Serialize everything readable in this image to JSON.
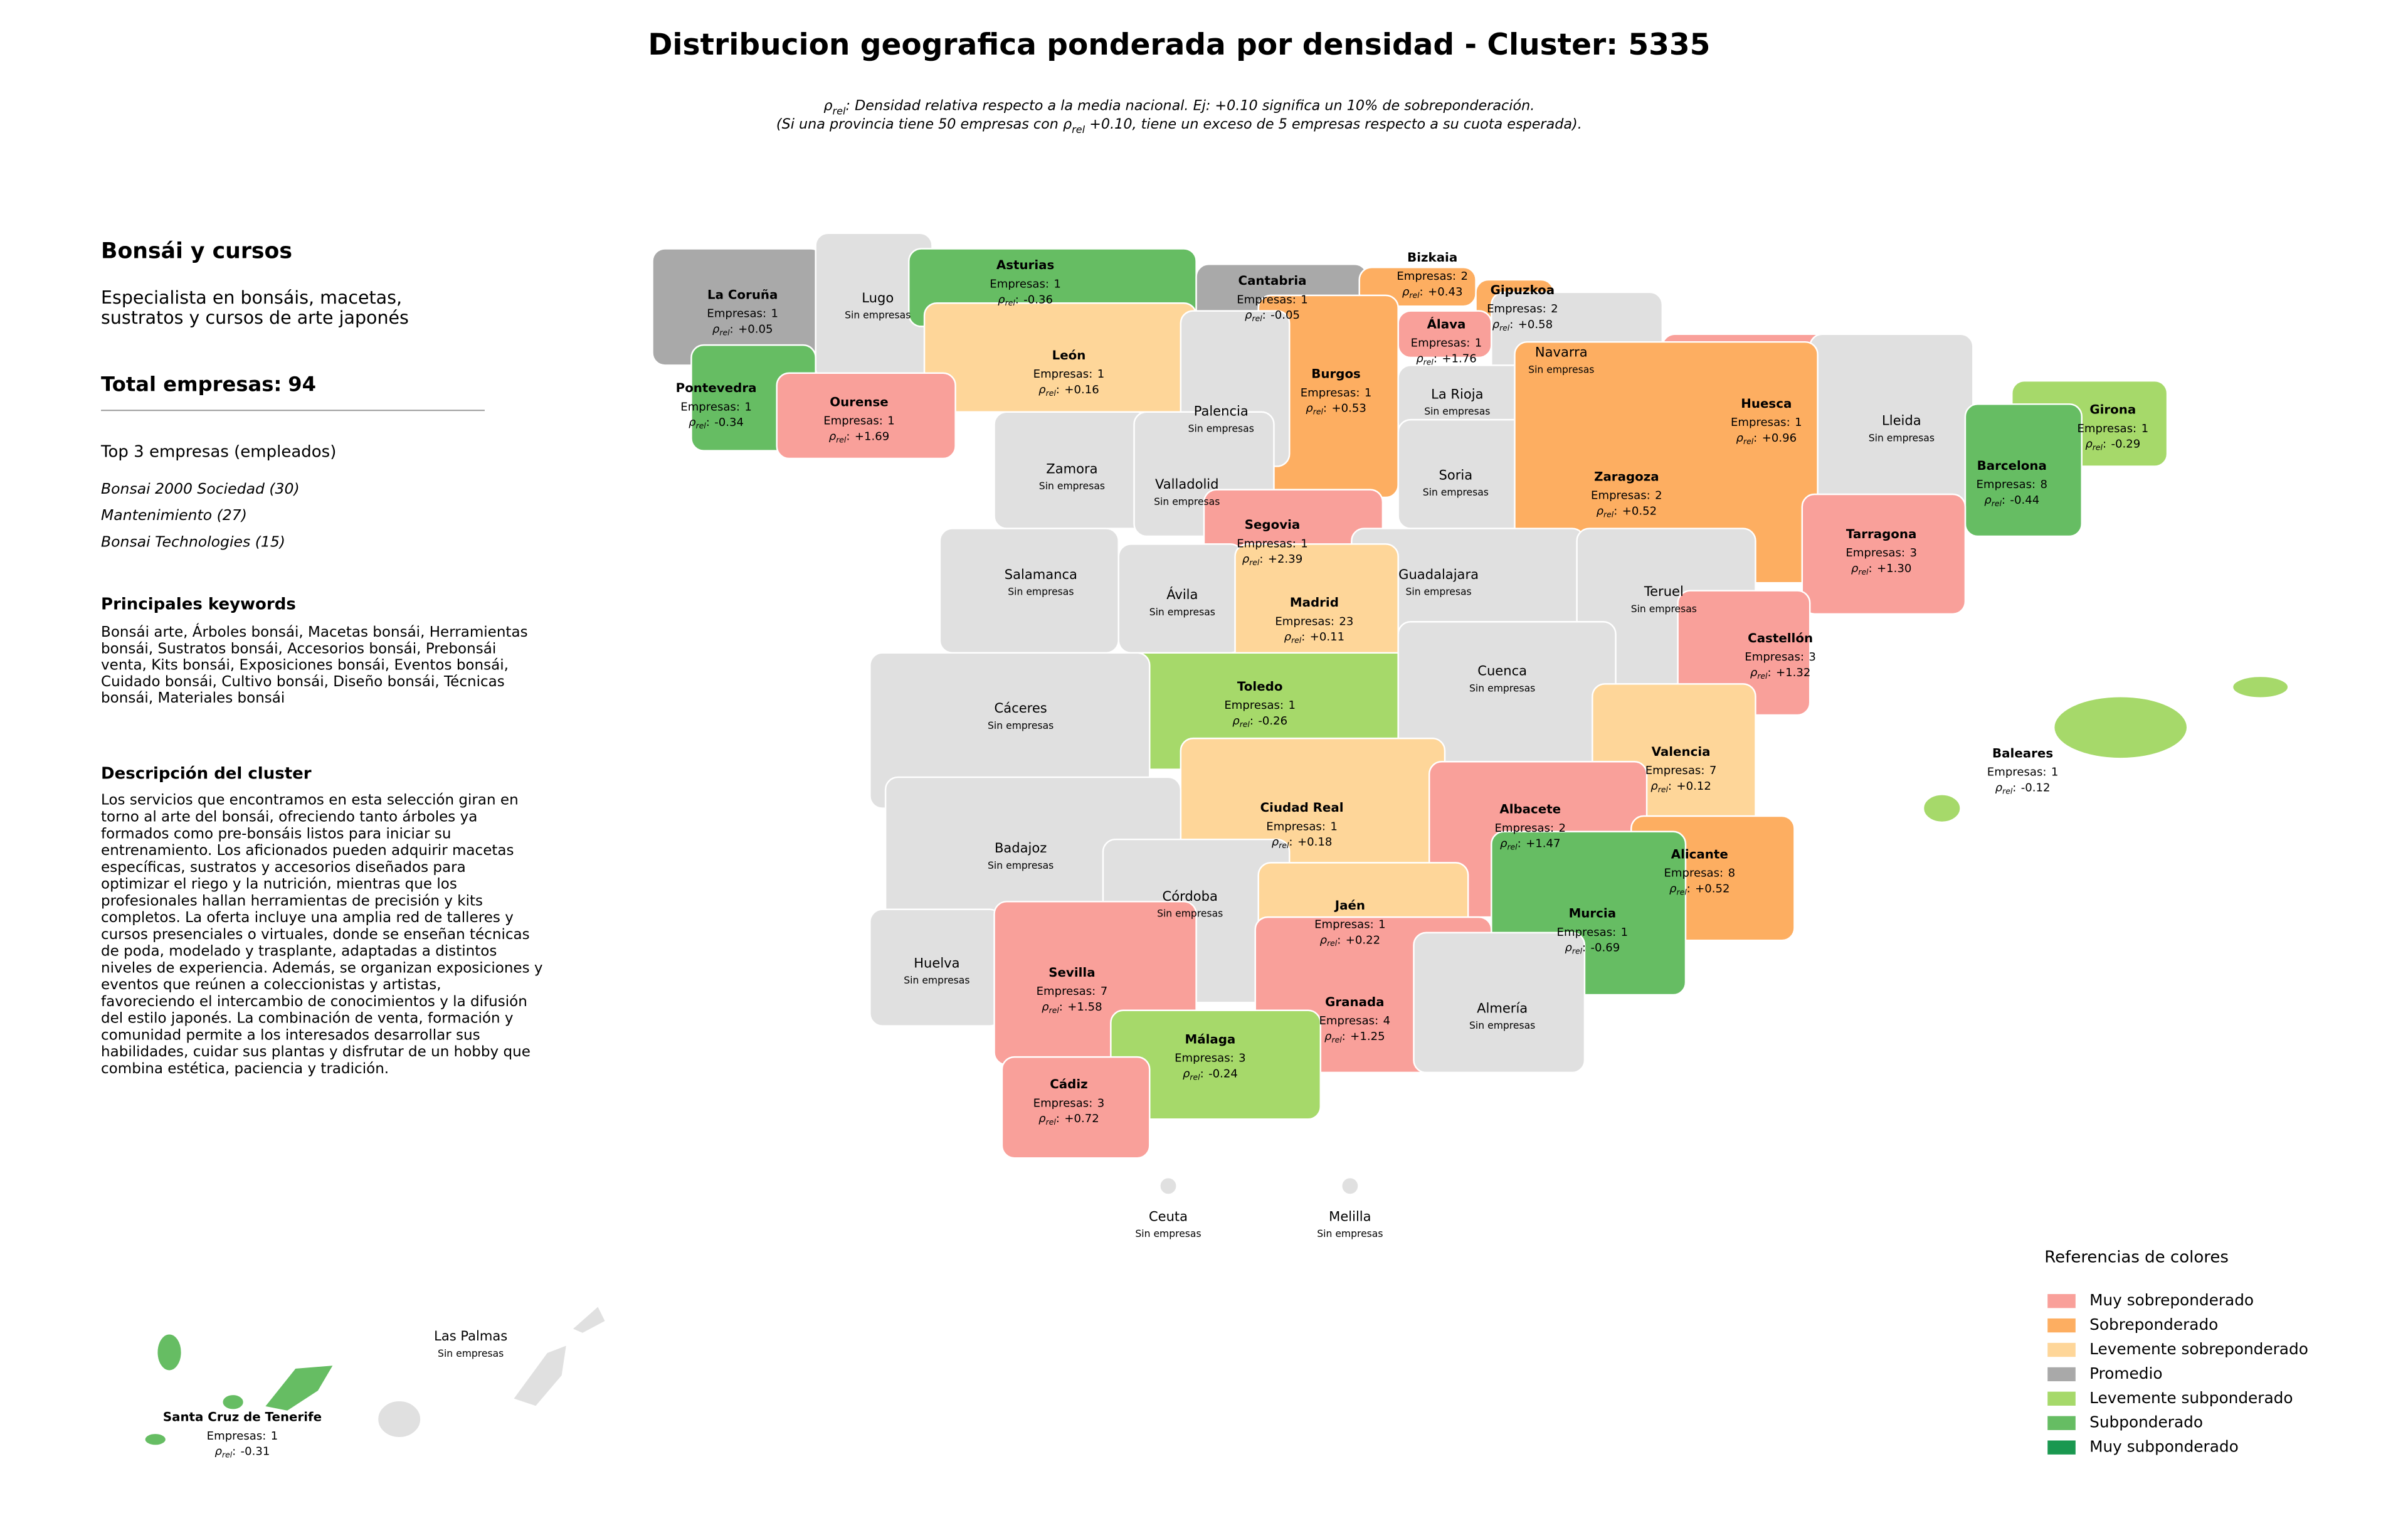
{
  "header": {
    "title": "Distribucion geografica ponderada por densidad - Cluster: 5335",
    "subtitle": [
      [
        {
          "t": "ρ"
        },
        {
          "t": "rel",
          "sub": true
        },
        {
          "t": ": Densidad relativa respecto a la media nacional. Ej: +0.10 significa un 10% de sobreponderación."
        }
      ],
      [
        {
          "t": "(Si una provincia tiene 50 empresas con "
        },
        {
          "t": "ρ"
        },
        {
          "t": "rel",
          "sub": true
        },
        {
          "t": " +0.10, tiene un exceso de 5 empresas respecto a su cuota esperada)."
        }
      ]
    ]
  },
  "panel": {
    "title": "Bonsái y cursos",
    "subtitle": [
      "Especialista en bonsáis, macetas,",
      "sustratos y cursos de arte japonés"
    ],
    "total_label": "Total empresas:",
    "total": 94,
    "top_title": "Top 3 empresas (empleados)",
    "top": [
      "Bonsai 2000 Sociedad (30)",
      "Mantenimiento (27)",
      "Bonsai Technologies (15)"
    ],
    "keywords_title": "Principales keywords",
    "keywords": [
      "Bonsái arte, Árboles bonsái, Macetas bonsái, Herramientas",
      "bonsái, Sustratos bonsái, Accesorios bonsái, Prebonsái",
      "venta, Kits bonsái, Exposiciones bonsái, Eventos bonsái,",
      "Cuidado bonsái, Cultivo bonsái, Diseño bonsái, Técnicas",
      "bonsái, Materiales bonsái"
    ],
    "description_title": "Descripción del cluster",
    "description": [
      "Los servicios que encontramos en esta selección giran en",
      "torno al arte del bonsái, ofreciendo tanto árboles ya",
      "formados como pre-bonsáis listos para iniciar su",
      "entrenamiento. Los aficionados pueden adquirir macetas",
      "específicas, sustratos y accesorios diseñados para",
      "optimizar el riego y la nutrición, mientras que los",
      "profesionales hallan herramientas de precisión y kits",
      "completos. La oferta incluye una amplia red de talleres y",
      "cursos presenciales o virtuales, donde se enseñan técnicas",
      "de poda, modelado y trasplante, adaptadas a distintos",
      "niveles de experiencia. Además, se organizan exposiciones y",
      "eventos que reúnen a coleccionistas y artistas,",
      "favoreciendo el intercambio de conocimientos y la difusión",
      "del estilo japonés. La combinación de venta, formación y",
      "comunidad permite a los interesados desarrollar sus",
      "habilidades, cuidar sus plantas y disfrutar de un hobby que",
      "combina estética, paciencia y tradición."
    ]
  },
  "labels": {
    "empresas": "Empresas:",
    "rho": "ρ",
    "rho_sub": "rel",
    "sep": ":",
    "none": "Sin empresas"
  },
  "provinces": [
    {
      "name": "La Coruña",
      "empresas": 1,
      "rho": "+0.05",
      "color": "#a9a9a9"
    },
    {
      "name": "Lugo",
      "color": "#e0e0e0"
    },
    {
      "name": "Asturias",
      "empresas": 1,
      "rho": "-0.36",
      "color": "#66bd63"
    },
    {
      "name": "Cantabria",
      "empresas": 1,
      "rho": "-0.05",
      "color": "#a9a9a9"
    },
    {
      "name": "Bizkaia",
      "empresas": 2,
      "rho": "+0.43",
      "color": "#fdae61"
    },
    {
      "name": "Gipuzkoa",
      "empresas": 2,
      "rho": "+0.58",
      "color": "#fdae61"
    },
    {
      "name": "Álava",
      "empresas": 1,
      "rho": "+1.76",
      "color": "#f9a09a"
    },
    {
      "name": "Navarra",
      "color": "#e0e0e0"
    },
    {
      "name": "León",
      "empresas": 1,
      "rho": "+0.16",
      "color": "#fed699"
    },
    {
      "name": "Pontevedra",
      "empresas": 1,
      "rho": "-0.34",
      "color": "#66bd63"
    },
    {
      "name": "Ourense",
      "empresas": 1,
      "rho": "+1.69",
      "color": "#f9a09a"
    },
    {
      "name": "Burgos",
      "empresas": 1,
      "rho": "+0.53",
      "color": "#fdae61"
    },
    {
      "name": "La Rioja",
      "color": "#e0e0e0"
    },
    {
      "name": "Palencia",
      "color": "#e0e0e0"
    },
    {
      "name": "Huesca",
      "empresas": 1,
      "rho": "+0.96",
      "color": "#f9a09a"
    },
    {
      "name": "Lleida",
      "color": "#e0e0e0"
    },
    {
      "name": "Girona",
      "empresas": 1,
      "rho": "-0.29",
      "color": "#a6d96a"
    },
    {
      "name": "Barcelona",
      "empresas": 8,
      "rho": "-0.44",
      "color": "#66bd63"
    },
    {
      "name": "Zamora",
      "color": "#e0e0e0"
    },
    {
      "name": "Valladolid",
      "color": "#e0e0e0"
    },
    {
      "name": "Soria",
      "color": "#e0e0e0"
    },
    {
      "name": "Zaragoza",
      "empresas": 2,
      "rho": "+0.52",
      "color": "#fdae61"
    },
    {
      "name": "Tarragona",
      "empresas": 3,
      "rho": "+1.30",
      "color": "#f9a09a"
    },
    {
      "name": "Segovia",
      "empresas": 1,
      "rho": "+2.39",
      "color": "#f9a09a"
    },
    {
      "name": "Salamanca",
      "color": "#e0e0e0"
    },
    {
      "name": "Ávila",
      "color": "#e0e0e0"
    },
    {
      "name": "Guadalajara",
      "color": "#e0e0e0"
    },
    {
      "name": "Teruel",
      "color": "#e0e0e0"
    },
    {
      "name": "Madrid",
      "empresas": 23,
      "rho": "+0.11",
      "color": "#fed699"
    },
    {
      "name": "Castellón",
      "empresas": 3,
      "rho": "+1.32",
      "color": "#f9a09a"
    },
    {
      "name": "Toledo",
      "empresas": 1,
      "rho": "-0.26",
      "color": "#a6d96a"
    },
    {
      "name": "Cáceres",
      "color": "#e0e0e0"
    },
    {
      "name": "Cuenca",
      "color": "#e0e0e0"
    },
    {
      "name": "Valencia",
      "empresas": 7,
      "rho": "+0.12",
      "color": "#fed699"
    },
    {
      "name": "Baleares",
      "empresas": 1,
      "rho": "-0.12",
      "color": "#a6d96a"
    },
    {
      "name": "Ciudad Real",
      "empresas": 1,
      "rho": "+0.18",
      "color": "#fed699"
    },
    {
      "name": "Albacete",
      "empresas": 2,
      "rho": "+1.47",
      "color": "#f9a09a"
    },
    {
      "name": "Badajoz",
      "color": "#e0e0e0"
    },
    {
      "name": "Alicante",
      "empresas": 8,
      "rho": "+0.52",
      "color": "#fdae61"
    },
    {
      "name": "Córdoba",
      "color": "#e0e0e0"
    },
    {
      "name": "Jaén",
      "empresas": 1,
      "rho": "+0.22",
      "color": "#fed699"
    },
    {
      "name": "Murcia",
      "empresas": 1,
      "rho": "-0.69",
      "color": "#66bd63"
    },
    {
      "name": "Huelva",
      "color": "#e0e0e0"
    },
    {
      "name": "Sevilla",
      "empresas": 7,
      "rho": "+1.58",
      "color": "#f9a09a"
    },
    {
      "name": "Granada",
      "empresas": 4,
      "rho": "+1.25",
      "color": "#f9a09a"
    },
    {
      "name": "Almería",
      "color": "#e0e0e0"
    },
    {
      "name": "Málaga",
      "empresas": 3,
      "rho": "-0.24",
      "color": "#a6d96a"
    },
    {
      "name": "Cádiz",
      "empresas": 3,
      "rho": "+0.72",
      "color": "#f9a09a"
    },
    {
      "name": "Ceuta",
      "color": "#e0e0e0"
    },
    {
      "name": "Melilla",
      "color": "#e0e0e0"
    },
    {
      "name": "Las Palmas",
      "color": "#e0e0e0"
    },
    {
      "name": "Santa Cruz de Tenerife",
      "empresas": 1,
      "rho": "-0.31",
      "color": "#66bd63"
    }
  ],
  "legend": {
    "title": "Referencias de colores",
    "items": [
      {
        "name": "Muy sobreponderado",
        "color": "#f9a09a"
      },
      {
        "name": "Sobreponderado",
        "color": "#fdae61"
      },
      {
        "name": "Levemente sobreponderado",
        "color": "#fed699"
      },
      {
        "name": "Promedio",
        "color": "#a9a9a9"
      },
      {
        "name": "Levemente subponderado",
        "color": "#a6d96a"
      },
      {
        "name": "Subponderado",
        "color": "#66bd63"
      },
      {
        "name": "Muy subponderado",
        "color": "#1a9850"
      }
    ]
  }
}
